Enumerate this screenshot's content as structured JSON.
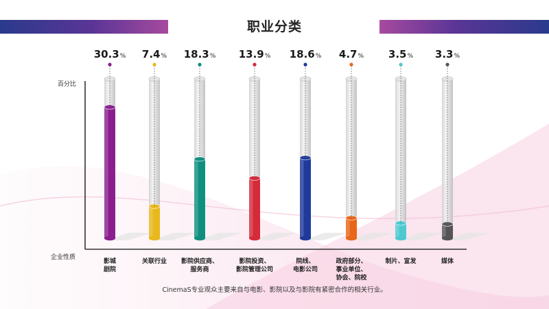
{
  "page": {
    "title": "职业分类",
    "y_axis_label": "百分比",
    "x_axis_label": "企业性质",
    "caption": "CinemaS专业观众主要来自与电影、影院以及与影院有紧密合作的相关行业。"
  },
  "chart_data": {
    "type": "bar",
    "title": "职业分类",
    "xlabel": "企业性质",
    "ylabel": "百分比",
    "unit": "%",
    "categories": [
      "影城\n剧院",
      "关联行业",
      "影院供应商、\n服务商",
      "影院投资、\n影院管理公司",
      "院线、\n电影公司",
      "政府部分、\n事业单位、\n协会、院校",
      "制片、宣发",
      "媒体"
    ],
    "values": [
      30.3,
      7.4,
      18.3,
      13.9,
      18.6,
      4.7,
      3.5,
      3.3
    ],
    "value_labels": [
      "30.3",
      "7.4",
      "18.3",
      "13.9",
      "18.6",
      "4.7",
      "3.5",
      "3.3"
    ],
    "colors": [
      "#8a1e8e",
      "#e8b81c",
      "#0f8f80",
      "#d42a3a",
      "#1f3a9a",
      "#e8661a",
      "#4fc8d0",
      "#555555"
    ],
    "ylim": [
      0,
      36
    ],
    "grid": false
  }
}
